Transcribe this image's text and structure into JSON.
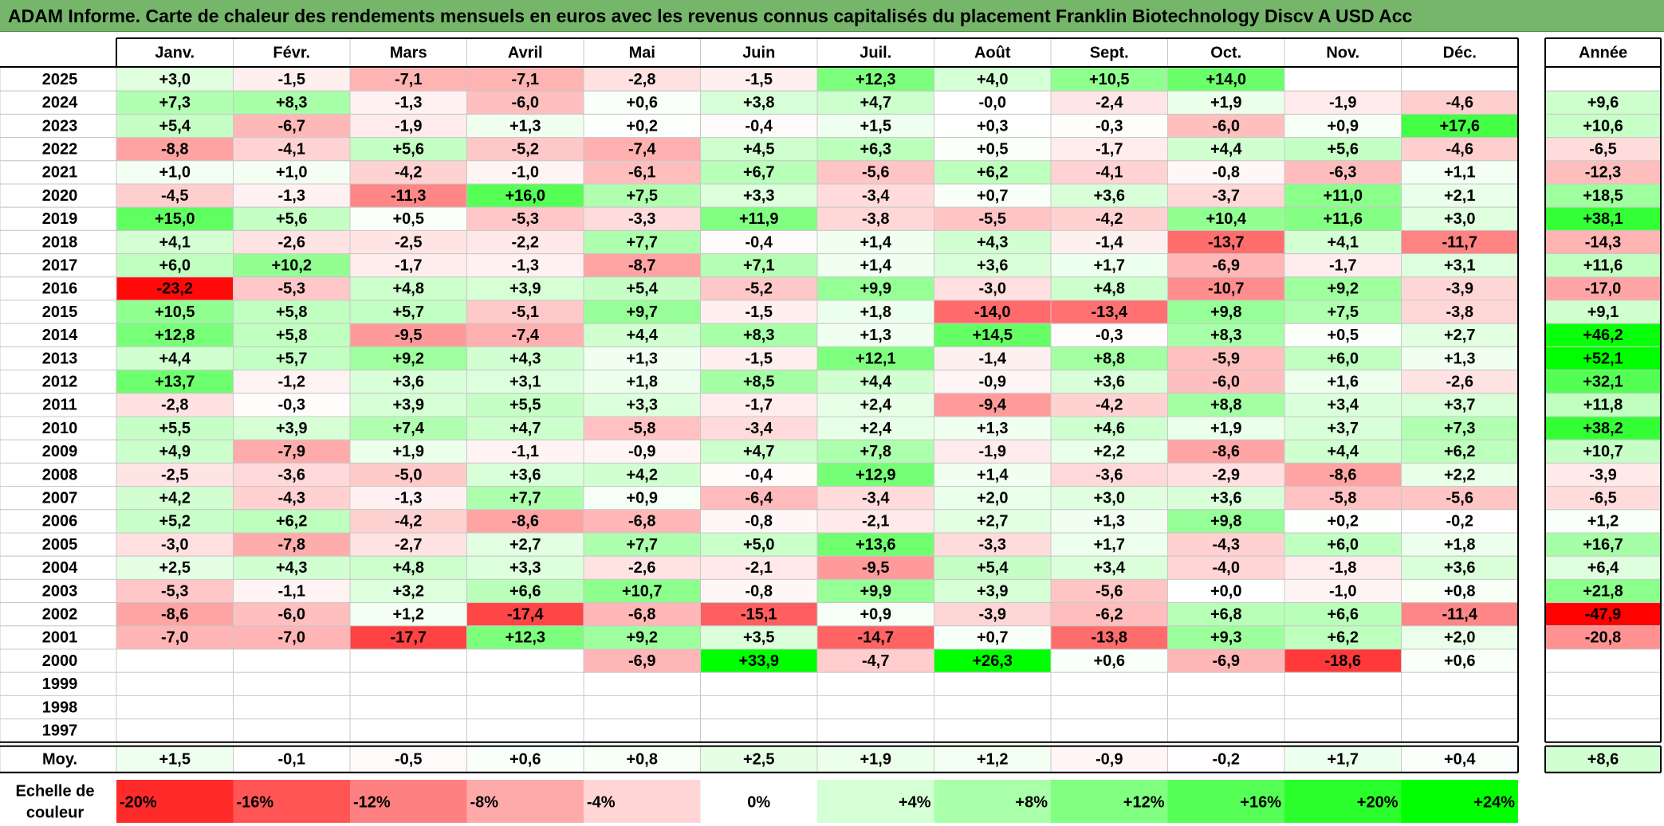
{
  "title": "ADAM Informe. Carte de chaleur des rendements mensuels en euros avec les revenus connus capitalisés du placement Franklin Biotechnology Discv A USD Acc",
  "chart_data": {
    "type": "heatmap",
    "months": [
      "Janv.",
      "Févr.",
      "Mars",
      "Avril",
      "Mai",
      "Juin",
      "Juil.",
      "Août",
      "Sept.",
      "Oct.",
      "Nov.",
      "Déc."
    ],
    "year_header": "Année",
    "avg_label": "Moy.",
    "rows": [
      {
        "year": "2025",
        "values": [
          "+3,0",
          "-1,5",
          "-7,1",
          "-7,1",
          "-2,8",
          "-1,5",
          "+12,3",
          "+4,0",
          "+10,5",
          "+14,0",
          "",
          ""
        ],
        "annual": ""
      },
      {
        "year": "2024",
        "values": [
          "+7,3",
          "+8,3",
          "-1,3",
          "-6,0",
          "+0,6",
          "+3,8",
          "+4,7",
          "-0,0",
          "-2,4",
          "+1,9",
          "-1,9",
          "-4,6"
        ],
        "annual": "+9,6"
      },
      {
        "year": "2023",
        "values": [
          "+5,4",
          "-6,7",
          "-1,9",
          "+1,3",
          "+0,2",
          "-0,4",
          "+1,5",
          "+0,3",
          "-0,3",
          "-6,0",
          "+0,9",
          "+17,6"
        ],
        "annual": "+10,6"
      },
      {
        "year": "2022",
        "values": [
          "-8,8",
          "-4,1",
          "+5,6",
          "-5,2",
          "-7,4",
          "+4,5",
          "+6,3",
          "+0,5",
          "-1,7",
          "+4,4",
          "+5,6",
          "-4,6"
        ],
        "annual": "-6,5"
      },
      {
        "year": "2021",
        "values": [
          "+1,0",
          "+1,0",
          "-4,2",
          "-1,0",
          "-6,1",
          "+6,7",
          "-5,6",
          "+6,2",
          "-4,1",
          "-0,8",
          "-6,3",
          "+1,1"
        ],
        "annual": "-12,3"
      },
      {
        "year": "2020",
        "values": [
          "-4,5",
          "-1,3",
          "-11,3",
          "+16,0",
          "+7,5",
          "+3,3",
          "-3,4",
          "+0,7",
          "+3,6",
          "-3,7",
          "+11,0",
          "+2,1"
        ],
        "annual": "+18,5"
      },
      {
        "year": "2019",
        "values": [
          "+15,0",
          "+5,6",
          "+0,5",
          "-5,3",
          "-3,3",
          "+11,9",
          "-3,8",
          "-5,5",
          "-4,2",
          "+10,4",
          "+11,6",
          "+3,0"
        ],
        "annual": "+38,1"
      },
      {
        "year": "2018",
        "values": [
          "+4,1",
          "-2,6",
          "-2,5",
          "-2,2",
          "+7,7",
          "-0,4",
          "+1,4",
          "+4,3",
          "-1,4",
          "-13,7",
          "+4,1",
          "-11,7"
        ],
        "annual": "-14,3"
      },
      {
        "year": "2017",
        "values": [
          "+6,0",
          "+10,2",
          "-1,7",
          "-1,3",
          "-8,7",
          "+7,1",
          "+1,4",
          "+3,6",
          "+1,7",
          "-6,9",
          "-1,7",
          "+3,1"
        ],
        "annual": "+11,6"
      },
      {
        "year": "2016",
        "values": [
          "-23,2",
          "-5,3",
          "+4,8",
          "+3,9",
          "+5,4",
          "-5,2",
          "+9,9",
          "-3,0",
          "+4,8",
          "-10,7",
          "+9,2",
          "-3,9"
        ],
        "annual": "-17,0"
      },
      {
        "year": "2015",
        "values": [
          "+10,5",
          "+5,8",
          "+5,7",
          "-5,1",
          "+9,7",
          "-1,5",
          "+1,8",
          "-14,0",
          "-13,4",
          "+9,8",
          "+7,5",
          "-3,8"
        ],
        "annual": "+9,1"
      },
      {
        "year": "2014",
        "values": [
          "+12,8",
          "+5,8",
          "-9,5",
          "-7,4",
          "+4,4",
          "+8,3",
          "+1,3",
          "+14,5",
          "-0,3",
          "+8,3",
          "+0,5",
          "+2,7"
        ],
        "annual": "+46,2"
      },
      {
        "year": "2013",
        "values": [
          "+4,4",
          "+5,7",
          "+9,2",
          "+4,3",
          "+1,3",
          "-1,5",
          "+12,1",
          "-1,4",
          "+8,8",
          "-5,9",
          "+6,0",
          "+1,3"
        ],
        "annual": "+52,1"
      },
      {
        "year": "2012",
        "values": [
          "+13,7",
          "-1,2",
          "+3,6",
          "+3,1",
          "+1,8",
          "+8,5",
          "+4,4",
          "-0,9",
          "+3,6",
          "-6,0",
          "+1,6",
          "-2,6"
        ],
        "annual": "+32,1"
      },
      {
        "year": "2011",
        "values": [
          "-2,8",
          "-0,3",
          "+3,9",
          "+5,5",
          "+3,3",
          "-1,7",
          "+2,4",
          "-9,4",
          "-4,2",
          "+8,8",
          "+3,4",
          "+3,7"
        ],
        "annual": "+11,8"
      },
      {
        "year": "2010",
        "values": [
          "+5,5",
          "+3,9",
          "+7,4",
          "+4,7",
          "-5,8",
          "-3,4",
          "+2,4",
          "+1,3",
          "+4,6",
          "+1,9",
          "+3,7",
          "+7,3"
        ],
        "annual": "+38,2"
      },
      {
        "year": "2009",
        "values": [
          "+4,9",
          "-7,9",
          "+1,9",
          "-1,1",
          "-0,9",
          "+4,7",
          "+7,8",
          "-1,9",
          "+2,2",
          "-8,6",
          "+4,4",
          "+6,2"
        ],
        "annual": "+10,7"
      },
      {
        "year": "2008",
        "values": [
          "-2,5",
          "-3,6",
          "-5,0",
          "+3,6",
          "+4,2",
          "-0,4",
          "+12,9",
          "+1,4",
          "-3,6",
          "-2,9",
          "-8,6",
          "+2,2"
        ],
        "annual": "-3,9"
      },
      {
        "year": "2007",
        "values": [
          "+4,2",
          "-4,3",
          "-1,3",
          "+7,7",
          "+0,9",
          "-6,4",
          "-3,4",
          "+2,0",
          "+3,0",
          "+3,6",
          "-5,8",
          "-5,6"
        ],
        "annual": "-6,5"
      },
      {
        "year": "2006",
        "values": [
          "+5,2",
          "+6,2",
          "-4,2",
          "-8,6",
          "-6,8",
          "-0,8",
          "-2,1",
          "+2,7",
          "+1,3",
          "+9,8",
          "+0,2",
          "-0,2"
        ],
        "annual": "+1,2"
      },
      {
        "year": "2005",
        "values": [
          "-3,0",
          "-7,8",
          "-2,7",
          "+2,7",
          "+7,7",
          "+5,0",
          "+13,6",
          "-3,3",
          "+1,7",
          "-4,3",
          "+6,0",
          "+1,8"
        ],
        "annual": "+16,7"
      },
      {
        "year": "2004",
        "values": [
          "+2,5",
          "+4,3",
          "+4,8",
          "+3,3",
          "-2,6",
          "-2,1",
          "-9,5",
          "+5,4",
          "+3,4",
          "-4,0",
          "-1,8",
          "+3,6"
        ],
        "annual": "+6,4"
      },
      {
        "year": "2003",
        "values": [
          "-5,3",
          "-1,1",
          "+3,2",
          "+6,6",
          "+10,7",
          "-0,8",
          "+9,9",
          "+3,9",
          "-5,6",
          "+0,0",
          "-1,0",
          "+0,8"
        ],
        "annual": "+21,8"
      },
      {
        "year": "2002",
        "values": [
          "-8,6",
          "-6,0",
          "+1,2",
          "-17,4",
          "-6,8",
          "-15,1",
          "+0,9",
          "-3,9",
          "-6,2",
          "+6,8",
          "+6,6",
          "-11,4"
        ],
        "annual": "-47,9"
      },
      {
        "year": "2001",
        "values": [
          "-7,0",
          "-7,0",
          "-17,7",
          "+12,3",
          "+9,2",
          "+3,5",
          "-14,7",
          "+0,7",
          "-13,8",
          "+9,3",
          "+6,2",
          "+2,0"
        ],
        "annual": "-20,8"
      },
      {
        "year": "2000",
        "values": [
          "",
          "",
          "",
          "",
          "-6,9",
          "+33,9",
          "-4,7",
          "+26,3",
          "+0,6",
          "-6,9",
          "-18,6",
          "+0,6"
        ],
        "annual": ""
      },
      {
        "year": "1999",
        "values": [
          "",
          "",
          "",
          "",
          "",
          "",
          "",
          "",
          "",
          "",
          "",
          ""
        ],
        "annual": ""
      },
      {
        "year": "1998",
        "values": [
          "",
          "",
          "",
          "",
          "",
          "",
          "",
          "",
          "",
          "",
          "",
          ""
        ],
        "annual": ""
      },
      {
        "year": "1997",
        "values": [
          "",
          "",
          "",
          "",
          "",
          "",
          "",
          "",
          "",
          "",
          "",
          ""
        ],
        "annual": ""
      }
    ],
    "averages": [
      "+1,5",
      "-0,1",
      "-0,5",
      "+0,6",
      "+0,8",
      "+2,5",
      "+1,9",
      "+1,2",
      "-0,9",
      "-0,2",
      "+1,7",
      "+0,4"
    ],
    "annual_average": "+8,6",
    "scale_label_line1": "Echelle de",
    "scale_label_line2": "couleur",
    "scale": [
      {
        "label": "-20%",
        "value": -20
      },
      {
        "label": "-16%",
        "value": -16
      },
      {
        "label": "-12%",
        "value": -12
      },
      {
        "label": "-8%",
        "value": -8
      },
      {
        "label": "-4%",
        "value": -4
      },
      {
        "label": "0%",
        "value": 0
      },
      {
        "label": "+4%",
        "value": 4
      },
      {
        "label": "+8%",
        "value": 8
      },
      {
        "label": "+12%",
        "value": 12
      },
      {
        "label": "+16%",
        "value": 16
      },
      {
        "label": "+20%",
        "value": 20
      },
      {
        "label": "+24%",
        "value": 24
      }
    ],
    "colors": {
      "negative": "#ff0000",
      "neutral": "#ffffff",
      "positive": "#00ff00",
      "title_bar": "#76b66b"
    }
  }
}
